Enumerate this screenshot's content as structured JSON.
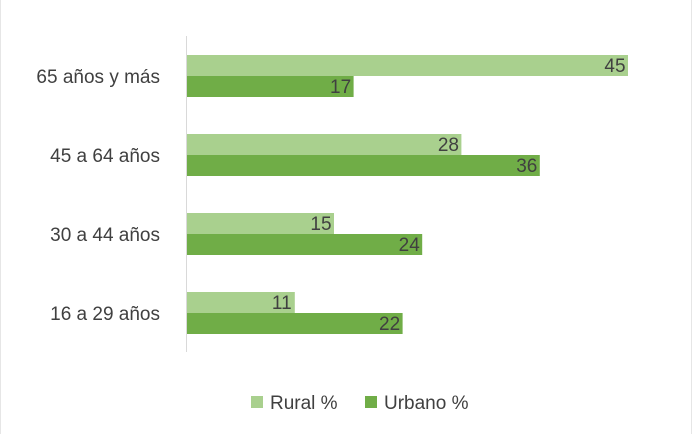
{
  "chart_data": {
    "type": "bar",
    "orientation": "horizontal",
    "categories": [
      "65 años y más",
      "45 a 64 años",
      "30 a 44 años",
      "16 a 29 años"
    ],
    "series": [
      {
        "name": "Rural %",
        "color": "#a9d08e",
        "values": [
          45,
          28,
          15,
          11
        ]
      },
      {
        "name": "Urbano %",
        "color": "#70ad47",
        "values": [
          17,
          36,
          24,
          22
        ]
      }
    ],
    "xlim": [
      0,
      50
    ],
    "grid": false,
    "data_labels": true,
    "legend_position": "bottom"
  }
}
